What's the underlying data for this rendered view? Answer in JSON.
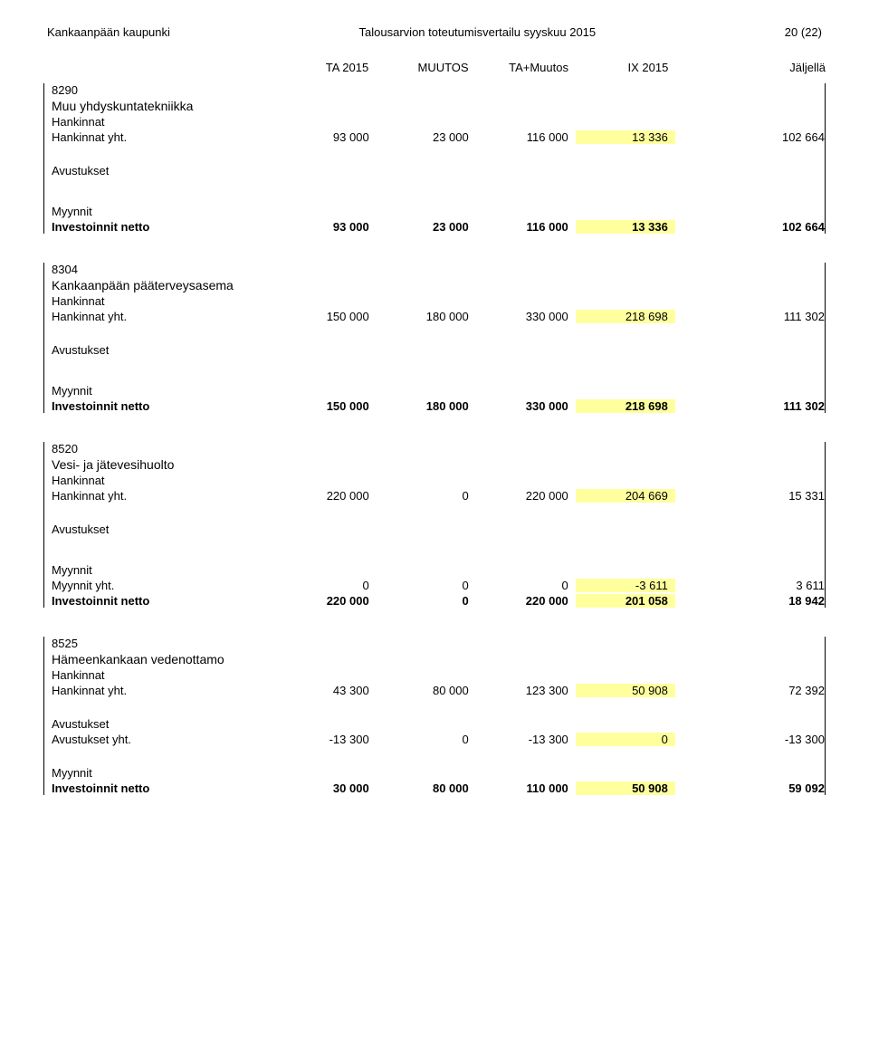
{
  "header": {
    "left": "Kankaanpään kaupunki",
    "center": "Talousarvion toteutumisvertailu syyskuu 2015",
    "right": "20 (22)"
  },
  "columns": {
    "c1": "TA 2015",
    "c2": "MUUTOS",
    "c3": "TA+Muutos",
    "c4": "IX 2015",
    "c5": "Jäljellä"
  },
  "sections": [
    {
      "code": "8290",
      "title": "Muu yhdyskuntatekniikka",
      "hankinnat_label": "Hankinnat",
      "hankinnat_yht_label": "Hankinnat yht.",
      "hankinnat_yht": {
        "c1": "93 000",
        "c2": "23 000",
        "c3": "116 000",
        "c4": "13 336",
        "c5": "102 664"
      },
      "avustukset_label": "Avustukset",
      "myynnit_label": "Myynnit",
      "netto_label": "Investoinnit netto",
      "netto": {
        "c1": "93 000",
        "c2": "23 000",
        "c3": "116 000",
        "c4": "13 336",
        "c5": "102 664"
      }
    },
    {
      "code": "8304",
      "title": "Kankaanpään pääterveysasema",
      "hankinnat_label": "Hankinnat",
      "hankinnat_yht_label": "Hankinnat yht.",
      "hankinnat_yht": {
        "c1": "150 000",
        "c2": "180 000",
        "c3": "330 000",
        "c4": "218 698",
        "c5": "111 302"
      },
      "avustukset_label": "Avustukset",
      "myynnit_label": "Myynnit",
      "netto_label": "Investoinnit netto",
      "netto": {
        "c1": "150 000",
        "c2": "180 000",
        "c3": "330 000",
        "c4": "218 698",
        "c5": "111 302"
      }
    },
    {
      "code": "8520",
      "title": "Vesi- ja jätevesihuolto",
      "hankinnat_label": "Hankinnat",
      "hankinnat_yht_label": "Hankinnat yht.",
      "hankinnat_yht": {
        "c1": "220 000",
        "c2": "0",
        "c3": "220 000",
        "c4": "204 669",
        "c5": "15 331"
      },
      "avustukset_label": "Avustukset",
      "myynnit_label": "Myynnit",
      "myynnit_yht_label": "Myynnit yht.",
      "myynnit_yht": {
        "c1": "0",
        "c2": "0",
        "c3": "0",
        "c4": "-3 611",
        "c5": "3 611"
      },
      "netto_label": "Investoinnit netto",
      "netto": {
        "c1": "220 000",
        "c2": "0",
        "c3": "220 000",
        "c4": "201 058",
        "c5": "18 942"
      }
    },
    {
      "code": "8525",
      "title": "Hämeenkankaan vedenottamo",
      "hankinnat_label": "Hankinnat",
      "hankinnat_yht_label": "Hankinnat yht.",
      "hankinnat_yht": {
        "c1": "43 300",
        "c2": "80 000",
        "c3": "123 300",
        "c4": "50 908",
        "c5": "72 392"
      },
      "avustukset_label": "Avustukset",
      "avustukset_yht_label": "Avustukset yht.",
      "avustukset_yht": {
        "c1": "-13 300",
        "c2": "0",
        "c3": "-13 300",
        "c4": "0",
        "c5": "-13 300"
      },
      "myynnit_label": "Myynnit",
      "netto_label": "Investoinnit netto",
      "netto": {
        "c1": "30 000",
        "c2": "80 000",
        "c3": "110 000",
        "c4": "50 908",
        "c5": "59 092"
      }
    }
  ],
  "style": {
    "highlight_color": "#ffff9e",
    "text_color": "#000000",
    "background_color": "#ffffff",
    "border_color": "#000000",
    "base_fontsize": 13,
    "title_fontsize": 14
  }
}
